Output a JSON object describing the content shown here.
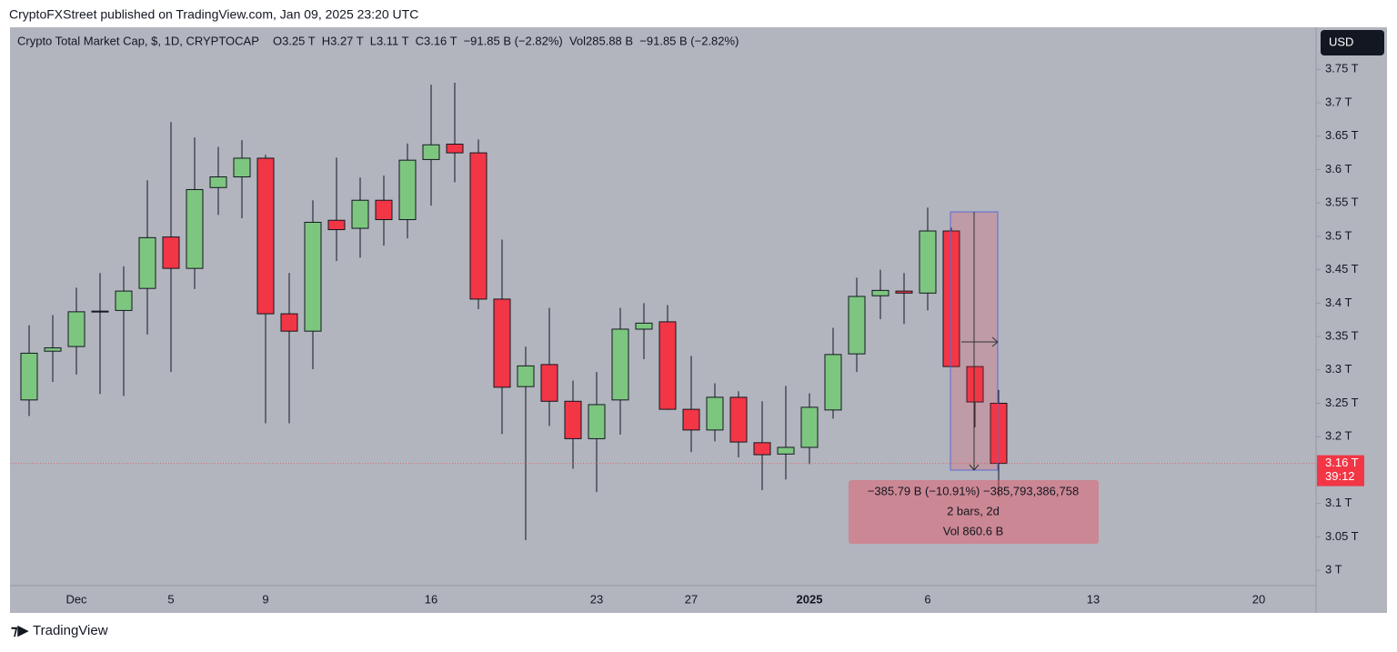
{
  "publisher": "CryptoFXStreet published on TradingView.com, Jan 09, 2025 23:20 UTC",
  "brand": "TradingView",
  "currency": "USD",
  "chart_data": {
    "type": "candlestick",
    "title": "Crypto Total Market Cap, $, 1D, CRYPTOCAP",
    "legend_values": "O3.25 T  H3.27 T  L3.11 T  C3.16 T  −91.85 B (−2.82%)  Vol285.88 B  −91.85 B (−2.82%)",
    "categories": [
      null,
      null,
      "Dec",
      null,
      null,
      null,
      "5",
      null,
      null,
      null,
      "9",
      null,
      null,
      null,
      null,
      null,
      null,
      "16",
      null,
      null,
      null,
      null,
      null,
      null,
      "23",
      null,
      null,
      null,
      "27",
      null,
      null,
      null,
      null,
      "2025",
      null,
      null,
      null,
      null,
      "6",
      null,
      null,
      null,
      null,
      null,
      null,
      "13",
      null,
      null,
      null,
      null,
      null,
      null,
      "20",
      null,
      null
    ],
    "open": [
      3.255,
      3.328,
      3.335,
      3.387,
      3.389,
      3.422,
      3.499,
      3.452,
      3.573,
      3.589,
      3.617,
      3.384,
      3.358,
      3.524,
      3.512,
      3.554,
      3.525,
      3.615,
      3.638,
      3.625,
      3.406,
      3.275,
      3.308,
      3.253,
      3.197,
      3.255,
      3.361,
      3.372,
      3.241,
      3.21,
      3.259,
      3.191,
      3.174,
      3.184,
      3.24,
      3.324,
      3.411,
      3.418,
      3.415,
      3.508,
      3.305,
      3.25,
      null,
      null,
      null,
      null,
      null,
      null,
      null,
      null,
      null,
      null,
      null,
      null,
      null
    ],
    "high": [
      3.367,
      3.382,
      3.423,
      3.445,
      3.455,
      3.584,
      3.671,
      3.648,
      3.634,
      3.644,
      3.622,
      3.445,
      3.554,
      3.618,
      3.588,
      3.591,
      3.639,
      3.727,
      3.73,
      3.645,
      3.495,
      3.335,
      3.393,
      3.284,
      3.297,
      3.393,
      3.4,
      3.397,
      3.321,
      3.28,
      3.268,
      3.253,
      3.276,
      3.265,
      3.363,
      3.438,
      3.45,
      3.445,
      3.543,
      3.513,
      3.305,
      3.27,
      null,
      null,
      null,
      null,
      null,
      null,
      null,
      null,
      null,
      null,
      null,
      null,
      null
    ],
    "low": [
      3.231,
      3.282,
      3.293,
      3.264,
      3.261,
      3.353,
      3.297,
      3.421,
      3.532,
      3.527,
      3.22,
      3.22,
      3.301,
      3.463,
      3.468,
      3.486,
      3.497,
      3.546,
      3.581,
      3.391,
      3.204,
      3.045,
      3.216,
      3.152,
      3.117,
      3.203,
      3.316,
      3.24,
      3.177,
      3.193,
      3.169,
      3.12,
      3.136,
      3.159,
      3.227,
      3.297,
      3.376,
      3.369,
      3.389,
      3.305,
      3.214,
      3.11,
      null,
      null,
      null,
      null,
      null,
      null,
      null,
      null,
      null,
      null,
      null,
      null,
      null
    ],
    "close": [
      3.325,
      3.333,
      3.387,
      3.388,
      3.418,
      3.498,
      3.452,
      3.57,
      3.589,
      3.617,
      3.384,
      3.358,
      3.521,
      3.51,
      3.554,
      3.525,
      3.614,
      3.637,
      3.625,
      3.406,
      3.274,
      3.306,
      3.253,
      3.197,
      3.248,
      3.361,
      3.37,
      3.241,
      3.21,
      3.259,
      3.192,
      3.173,
      3.184,
      3.244,
      3.323,
      3.41,
      3.419,
      3.415,
      3.508,
      3.305,
      3.252,
      3.16,
      null,
      null,
      null,
      null,
      null,
      null,
      null,
      null,
      null,
      null,
      null,
      null,
      null
    ],
    "up_color": "#7dc67f",
    "down_color": "#f23645",
    "ylim": [
      2.977,
      3.813
    ],
    "yticks": [
      {
        "value": 3,
        "label": "3 T"
      },
      {
        "value": 3.05,
        "label": "3.05 T"
      },
      {
        "value": 3.1,
        "label": "3.1 T"
      },
      {
        "value": 3.15,
        "label": "3.15 T"
      },
      {
        "value": 3.2,
        "label": "3.2 T"
      },
      {
        "value": 3.25,
        "label": "3.25 T"
      },
      {
        "value": 3.3,
        "label": "3.3 T"
      },
      {
        "value": 3.35,
        "label": "3.35 T"
      },
      {
        "value": 3.4,
        "label": "3.4 T"
      },
      {
        "value": 3.45,
        "label": "3.45 T"
      },
      {
        "value": 3.5,
        "label": "3.5 T"
      },
      {
        "value": 3.55,
        "label": "3.55 T"
      },
      {
        "value": 3.6,
        "label": "3.6 T"
      },
      {
        "value": 3.65,
        "label": "3.65 T"
      },
      {
        "value": 3.7,
        "label": "3.7 T"
      },
      {
        "value": 3.75,
        "label": "3.75 T"
      }
    ],
    "last_price": {
      "value": 3.16,
      "label": "3.16 T",
      "countdown": "39:12"
    },
    "grid": false,
    "annotations": [
      "−385.79 B (−10.91%) −385,793,386,758",
      "2 bars, 2d",
      "Vol 860.6 B"
    ]
  }
}
